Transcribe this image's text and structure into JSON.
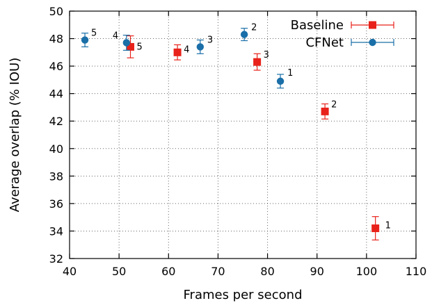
{
  "chart_data": {
    "type": "scatter",
    "title": "",
    "xlabel": "Frames per second",
    "ylabel": "Average overlap (% IOU)",
    "xlim": [
      40,
      110
    ],
    "ylim": [
      32,
      50
    ],
    "xticks": [
      40,
      50,
      60,
      70,
      80,
      90,
      100,
      110
    ],
    "yticks": [
      32,
      34,
      36,
      38,
      40,
      42,
      44,
      46,
      48,
      50
    ],
    "grid": "dotted",
    "legend": "top-right",
    "series": [
      {
        "name": "Baseline",
        "color": "#e8221a",
        "marker": "square",
        "points": [
          {
            "x": 101.8,
            "y": 34.2,
            "yerr": 0.85,
            "label": "1"
          },
          {
            "x": 91.6,
            "y": 42.7,
            "yerr": 0.55,
            "label": "2"
          },
          {
            "x": 77.9,
            "y": 46.3,
            "yerr": 0.6,
            "label": "3"
          },
          {
            "x": 61.8,
            "y": 47.0,
            "yerr": 0.55,
            "label": "4"
          },
          {
            "x": 52.3,
            "y": 47.4,
            "yerr": 0.8,
            "label": "5"
          }
        ]
      },
      {
        "name": "CFNet",
        "color": "#1a6fa8",
        "marker": "circle",
        "points": [
          {
            "x": 82.6,
            "y": 44.9,
            "yerr": 0.5,
            "label": "1"
          },
          {
            "x": 75.3,
            "y": 48.3,
            "yerr": 0.45,
            "label": "2"
          },
          {
            "x": 66.4,
            "y": 47.4,
            "yerr": 0.5,
            "label": "3"
          },
          {
            "x": 51.5,
            "y": 47.7,
            "yerr": 0.55,
            "label": "4"
          },
          {
            "x": 43.1,
            "y": 47.9,
            "yerr": 0.5,
            "label": "5"
          }
        ]
      }
    ]
  }
}
